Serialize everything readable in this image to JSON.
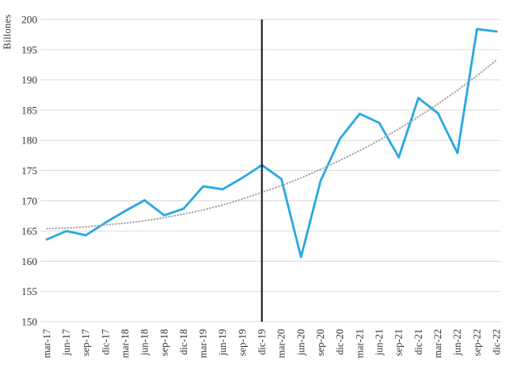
{
  "chart_data": {
    "type": "line",
    "title": "",
    "xlabel": "",
    "ylabel": "Billones",
    "ylim": [
      150,
      200
    ],
    "ytick_step": 5,
    "yticks": [
      150,
      155,
      160,
      165,
      170,
      175,
      180,
      185,
      190,
      195,
      200
    ],
    "grid": "horizontal",
    "legend": "none",
    "categories": [
      "mar-17",
      "jun-17",
      "sep-17",
      "dic-17",
      "mar-18",
      "jun-18",
      "sep-18",
      "dic-18",
      "mar-19",
      "jun-19",
      "sep-19",
      "dic-19",
      "mar-20",
      "jun-20",
      "sep-20",
      "dic-20",
      "mar-21",
      "jun-21",
      "sep-21",
      "dic-21",
      "mar-22",
      "jun-22",
      "sep-22",
      "dic-22"
    ],
    "series": [
      {
        "name": "observed-line",
        "style": "solid",
        "color": "#29a9e0",
        "values": [
          163.6,
          165.0,
          164.3,
          166.4,
          168.3,
          170.1,
          167.6,
          168.7,
          172.4,
          171.9,
          173.8,
          175.9,
          173.6,
          160.7,
          173.3,
          180.3,
          184.4,
          182.9,
          177.2,
          187.0,
          184.5,
          177.9,
          198.4,
          198.0
        ]
      },
      {
        "name": "trend-dotted-line",
        "style": "dotted",
        "color": "#a6a6a6",
        "values": [
          165.4,
          165.5,
          165.7,
          166.0,
          166.3,
          166.7,
          167.2,
          167.8,
          168.5,
          169.3,
          170.3,
          171.4,
          172.5,
          173.8,
          175.2,
          176.7,
          178.3,
          180.0,
          181.9,
          183.9,
          186.0,
          188.3,
          190.7,
          193.3
        ]
      }
    ],
    "vertical_marker": {
      "category": "dic-19",
      "color": "#0d0d0d"
    },
    "colors": {
      "gridline": "#d9d9d9",
      "tick_text": "#333333"
    }
  }
}
